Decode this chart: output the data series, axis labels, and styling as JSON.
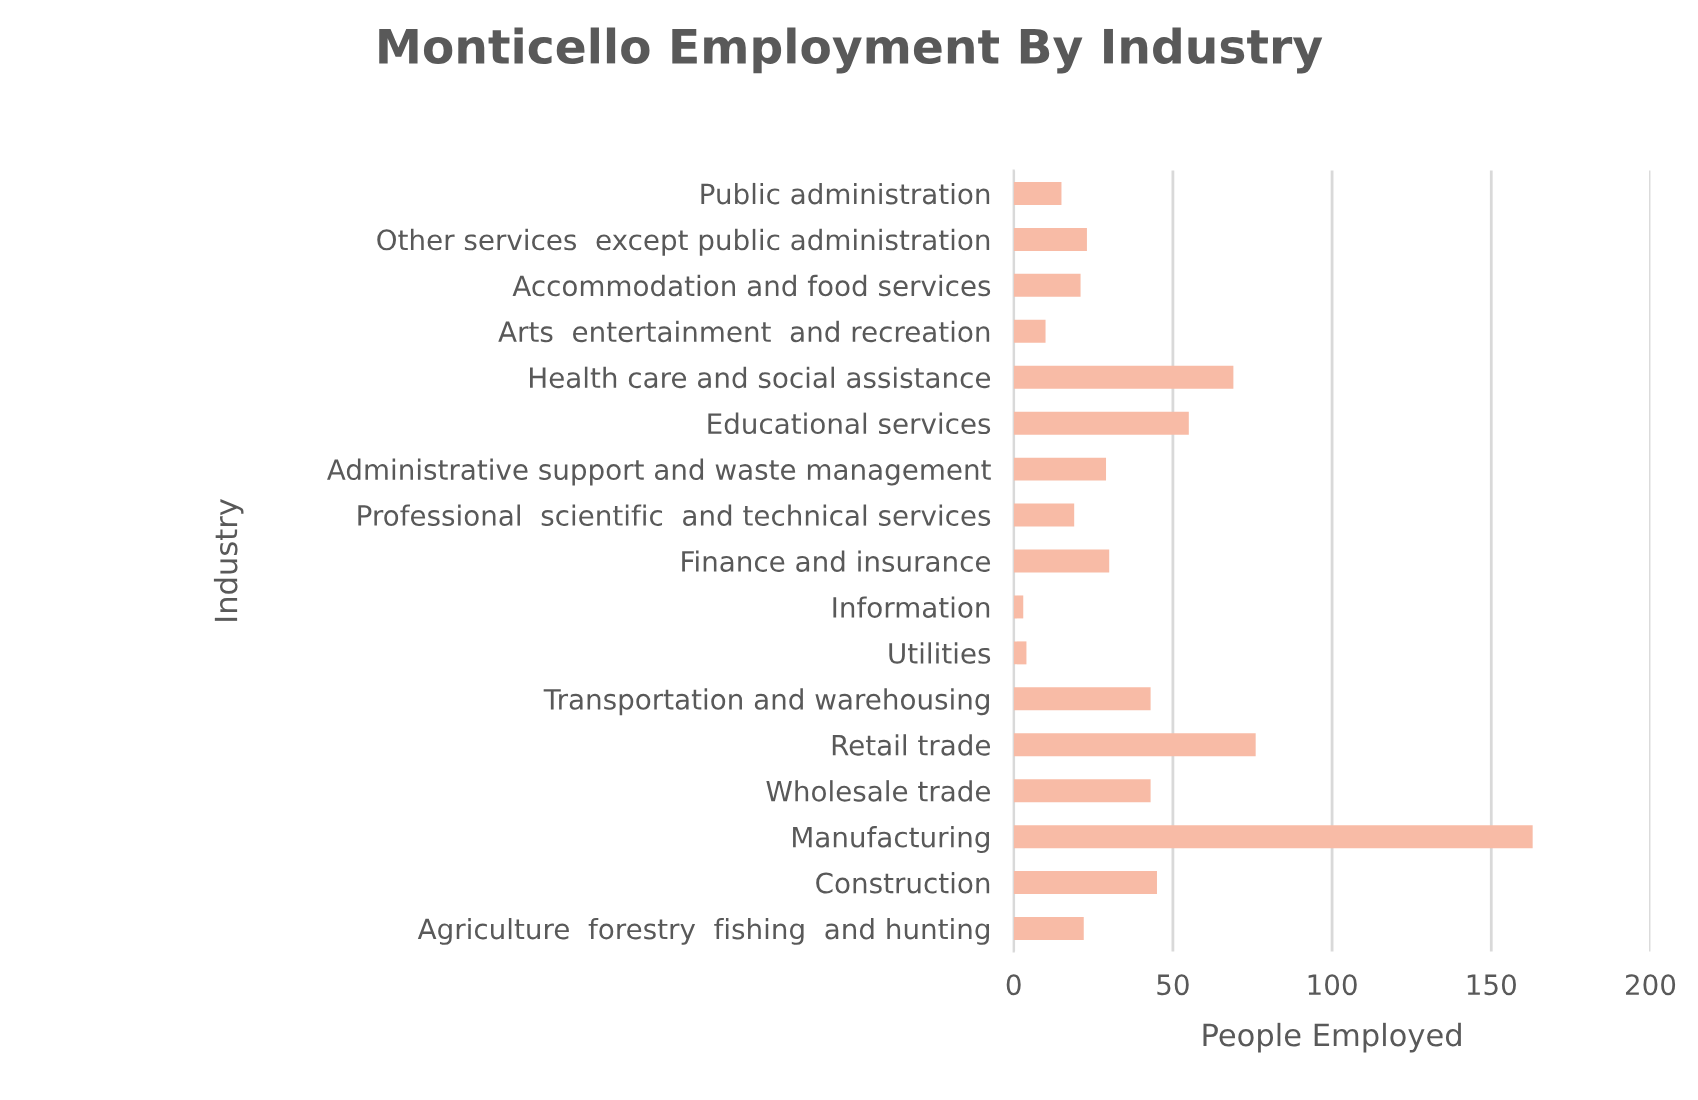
{
  "chart_data": {
    "type": "bar",
    "orientation": "horizontal",
    "title": "Monticello Employment By Industry",
    "xlabel": "People Employed",
    "ylabel": "Industry",
    "categories": [
      "Public administration",
      "Other services  except public administration",
      "Accommodation and food services",
      "Arts  entertainment  and recreation",
      "Health care and social assistance",
      "Educational services",
      "Administrative support and waste management",
      "Professional  scientific  and technical services",
      "Finance and insurance",
      "Information",
      "Utilities",
      "Transportation and warehousing",
      "Retail trade",
      "Wholesale trade",
      "Manufacturing",
      "Construction",
      "Agriculture  forestry  fishing  and hunting"
    ],
    "values": [
      15,
      23,
      21,
      10,
      69,
      55,
      29,
      19,
      30,
      3,
      4,
      43,
      76,
      43,
      163,
      45,
      22
    ],
    "color": "#f8bba6",
    "xlim": [
      0,
      200
    ],
    "xticks": [
      0,
      50,
      100,
      150,
      200
    ],
    "grid": "x"
  }
}
